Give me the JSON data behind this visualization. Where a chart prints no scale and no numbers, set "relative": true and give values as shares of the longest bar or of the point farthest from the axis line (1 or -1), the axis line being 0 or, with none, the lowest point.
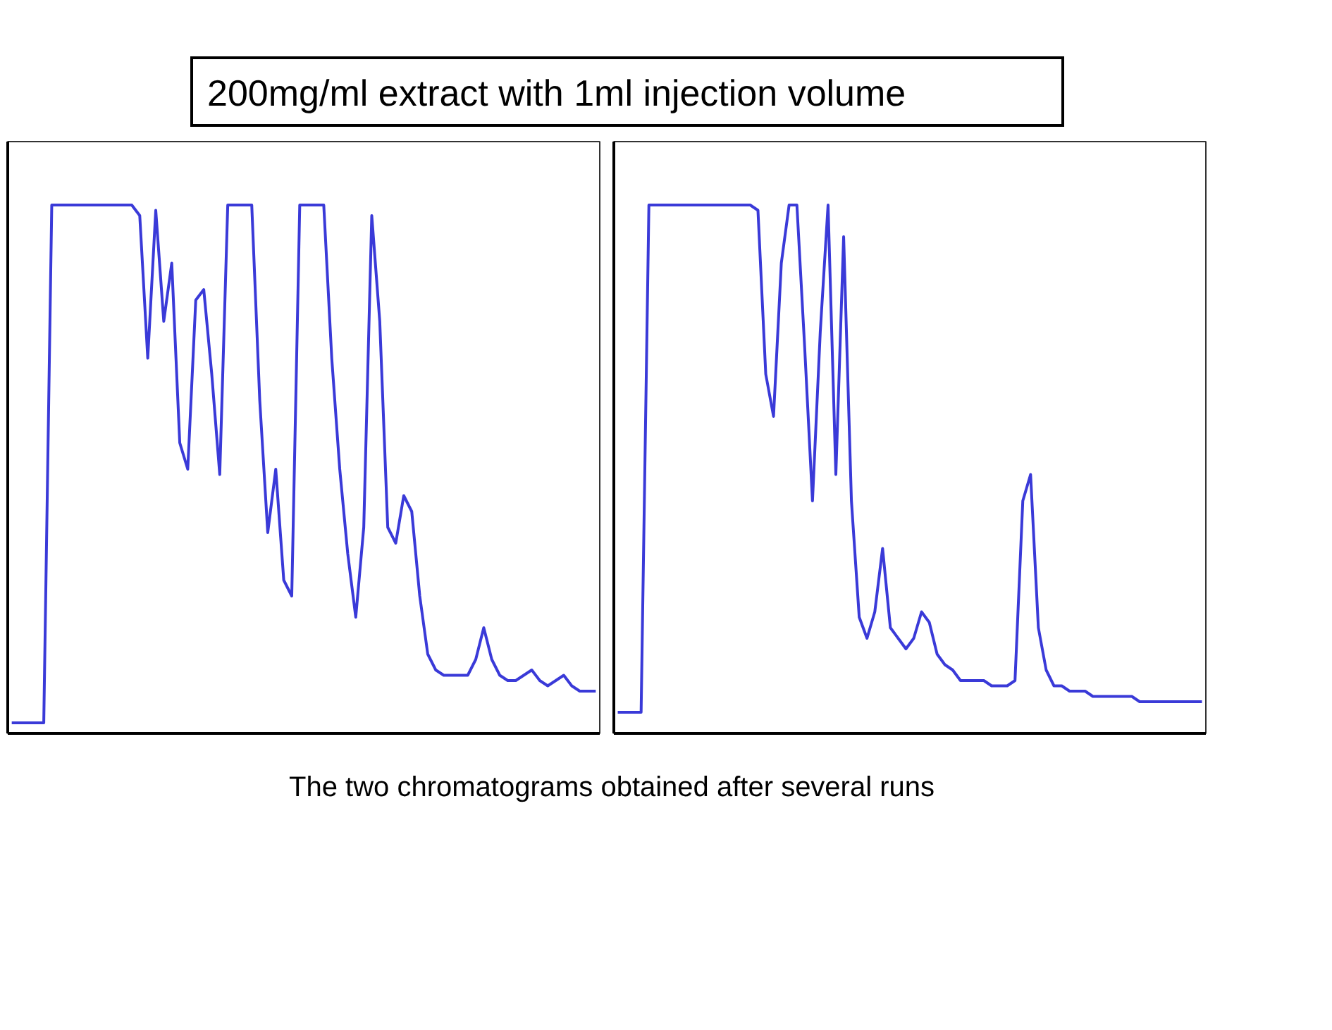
{
  "chart_data": [
    {
      "type": "line",
      "title": "200mg/ml extract with 1ml injection volume",
      "relative": true,
      "categories": [
        null,
        null,
        null,
        null,
        null,
        null,
        null,
        null,
        null,
        null,
        null,
        null,
        null,
        null,
        null,
        null,
        null,
        null,
        null,
        null,
        null,
        null,
        null,
        null,
        null,
        null,
        null,
        null,
        null,
        null,
        null,
        null,
        null,
        null,
        null,
        null,
        null,
        null,
        null,
        null,
        null,
        null,
        null,
        null,
        null,
        null,
        null,
        null,
        null,
        null,
        null,
        null,
        null,
        null,
        null,
        null,
        null,
        null,
        null,
        null,
        null,
        null,
        null,
        null,
        null,
        null,
        null,
        null,
        null,
        null,
        null,
        null,
        null,
        null
      ],
      "series": [
        {
          "color": "#3a3ad8",
          "values": [
            0.02,
            0.02,
            0.02,
            0.02,
            0.02,
            1.0,
            1.0,
            1.0,
            1.0,
            1.0,
            1.0,
            1.0,
            1.0,
            1.0,
            1.0,
            1.0,
            0.98,
            0.71,
            0.99,
            0.78,
            0.89,
            0.55,
            0.5,
            0.82,
            0.84,
            0.68,
            0.49,
            1.0,
            1.0,
            1.0,
            1.0,
            0.63,
            0.38,
            0.5,
            0.29,
            0.26,
            1.0,
            1.0,
            1.0,
            1.0,
            0.71,
            0.5,
            0.34,
            0.22,
            0.39,
            0.98,
            0.78,
            0.39,
            0.36,
            0.45,
            0.42,
            0.26,
            0.15,
            0.12,
            0.11,
            0.11,
            0.11,
            0.11,
            0.14,
            0.2,
            0.14,
            0.11,
            0.1,
            0.1,
            0.11,
            0.12,
            0.1,
            0.09,
            0.1,
            0.11,
            0.09,
            0.08,
            0.08,
            0.08
          ]
        }
      ]
    },
    {
      "type": "line",
      "relative": true,
      "annotations": [
        "The two chromatograms obtained after several runs"
      ],
      "categories": [
        null,
        null,
        null,
        null,
        null,
        null,
        null,
        null,
        null,
        null,
        null,
        null,
        null,
        null,
        null,
        null,
        null,
        null,
        null,
        null,
        null,
        null,
        null,
        null,
        null,
        null,
        null,
        null,
        null,
        null,
        null,
        null,
        null,
        null,
        null,
        null,
        null,
        null,
        null,
        null,
        null,
        null,
        null,
        null,
        null,
        null,
        null,
        null,
        null,
        null,
        null,
        null,
        null,
        null,
        null,
        null,
        null,
        null,
        null,
        null,
        null,
        null,
        null,
        null,
        null,
        null,
        null,
        null,
        null,
        null,
        null,
        null,
        null,
        null,
        null,
        null
      ],
      "series": [
        {
          "color": "#3a3ad8",
          "values": [
            0.04,
            0.04,
            0.04,
            0.04,
            1.0,
            1.0,
            1.0,
            1.0,
            1.0,
            1.0,
            1.0,
            1.0,
            1.0,
            1.0,
            1.0,
            1.0,
            1.0,
            1.0,
            0.99,
            0.68,
            0.6,
            0.89,
            1.0,
            1.0,
            0.73,
            0.44,
            0.76,
            1.0,
            0.49,
            0.94,
            0.44,
            0.22,
            0.18,
            0.23,
            0.35,
            0.2,
            0.18,
            0.16,
            0.18,
            0.23,
            0.21,
            0.15,
            0.13,
            0.12,
            0.1,
            0.1,
            0.1,
            0.1,
            0.09,
            0.09,
            0.09,
            0.1,
            0.44,
            0.49,
            0.2,
            0.12,
            0.09,
            0.09,
            0.08,
            0.08,
            0.08,
            0.07,
            0.07,
            0.07,
            0.07,
            0.07,
            0.07,
            0.06,
            0.06,
            0.06,
            0.06,
            0.06,
            0.06,
            0.06,
            0.06,
            0.06
          ]
        }
      ]
    }
  ]
}
